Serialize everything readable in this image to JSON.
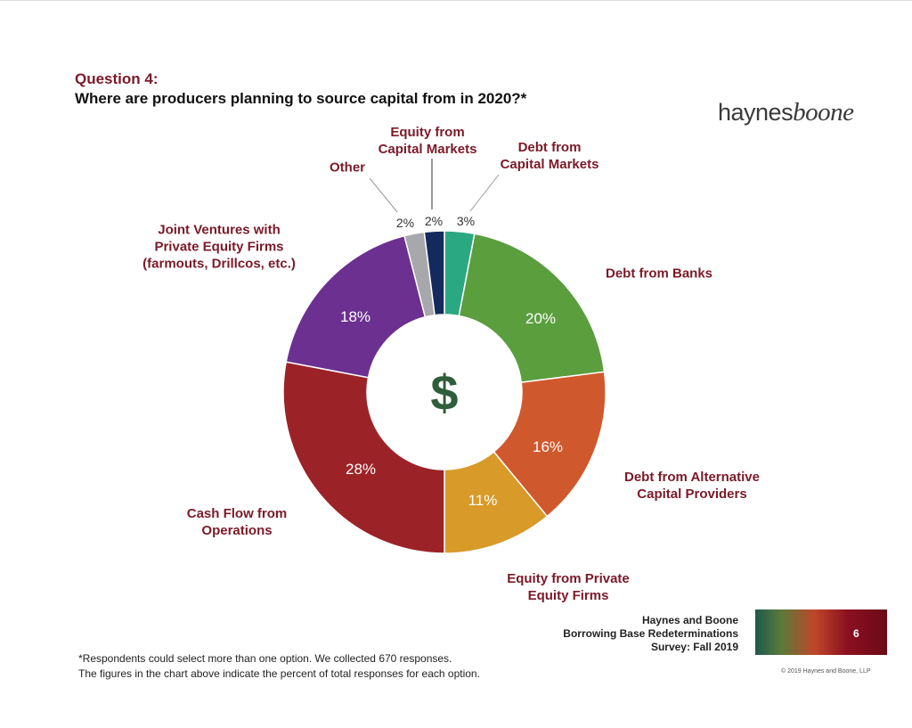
{
  "chart_data": {
    "type": "donut",
    "categories": [
      "Debt from\nCapital Markets",
      "Debt from Banks",
      "Debt from Alternative\nCapital Providers",
      "Equity from Private\nEquity Firms",
      "Cash Flow from\nOperations",
      "Joint Ventures with\nPrivate Equity Firms\n(farmouts, Drillcos, etc.)",
      "Other",
      "Equity from\nCapital Markets"
    ],
    "values": [
      3,
      20,
      16,
      11,
      28,
      18,
      2,
      2
    ],
    "value_labels": [
      "3%",
      "20%",
      "16%",
      "11%",
      "28%",
      "18%",
      "2%",
      "2%"
    ],
    "colors": [
      "#2aa882",
      "#5a9e3e",
      "#d0582d",
      "#d89a28",
      "#9b2328",
      "#6b3090",
      "#a6a8ab",
      "#142a5e"
    ],
    "center_label": "$"
  },
  "header": {
    "title": "Question 4:",
    "subtitle": "Where are producers planning to source capital from in 2020?*"
  },
  "logo": {
    "first": "haynes",
    "second": "boone"
  },
  "footnote": "*Respondents could select more than one option. We collected 670 responses.\nThe figures in the chart above indicate the percent of total responses for each option.",
  "footer": {
    "text": "Haynes and Boone\nBorrowing Base Redeterminations\nSurvey: Fall 2019",
    "page": "6",
    "copyright": "© 2019 Haynes and Boone, LLP"
  }
}
